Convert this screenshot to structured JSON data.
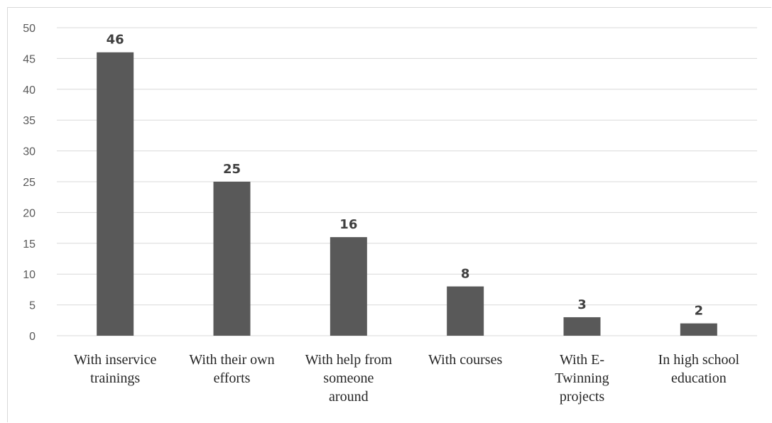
{
  "chart_data": {
    "type": "bar",
    "title": "",
    "xlabel": "",
    "ylabel": "",
    "categories": [
      [
        "With inservice",
        "trainings"
      ],
      [
        "With their own",
        "efforts"
      ],
      [
        "With help from",
        "someone",
        "around"
      ],
      [
        "With courses"
      ],
      [
        "With E-",
        "Twinning",
        "projects"
      ],
      [
        "In high school",
        "education"
      ]
    ],
    "values": [
      46,
      25,
      16,
      8,
      3,
      2
    ],
    "yticks": [
      "0",
      "5",
      "10",
      "15",
      "20",
      "25",
      "30",
      "35",
      "40",
      "45",
      "50"
    ],
    "ylim": [
      0,
      50
    ],
    "grid": true,
    "legend": "none",
    "colors": {
      "bar": "#595959",
      "grid": "#d9d9d9",
      "tick_text": "#595959",
      "label_text": "#404040"
    }
  }
}
